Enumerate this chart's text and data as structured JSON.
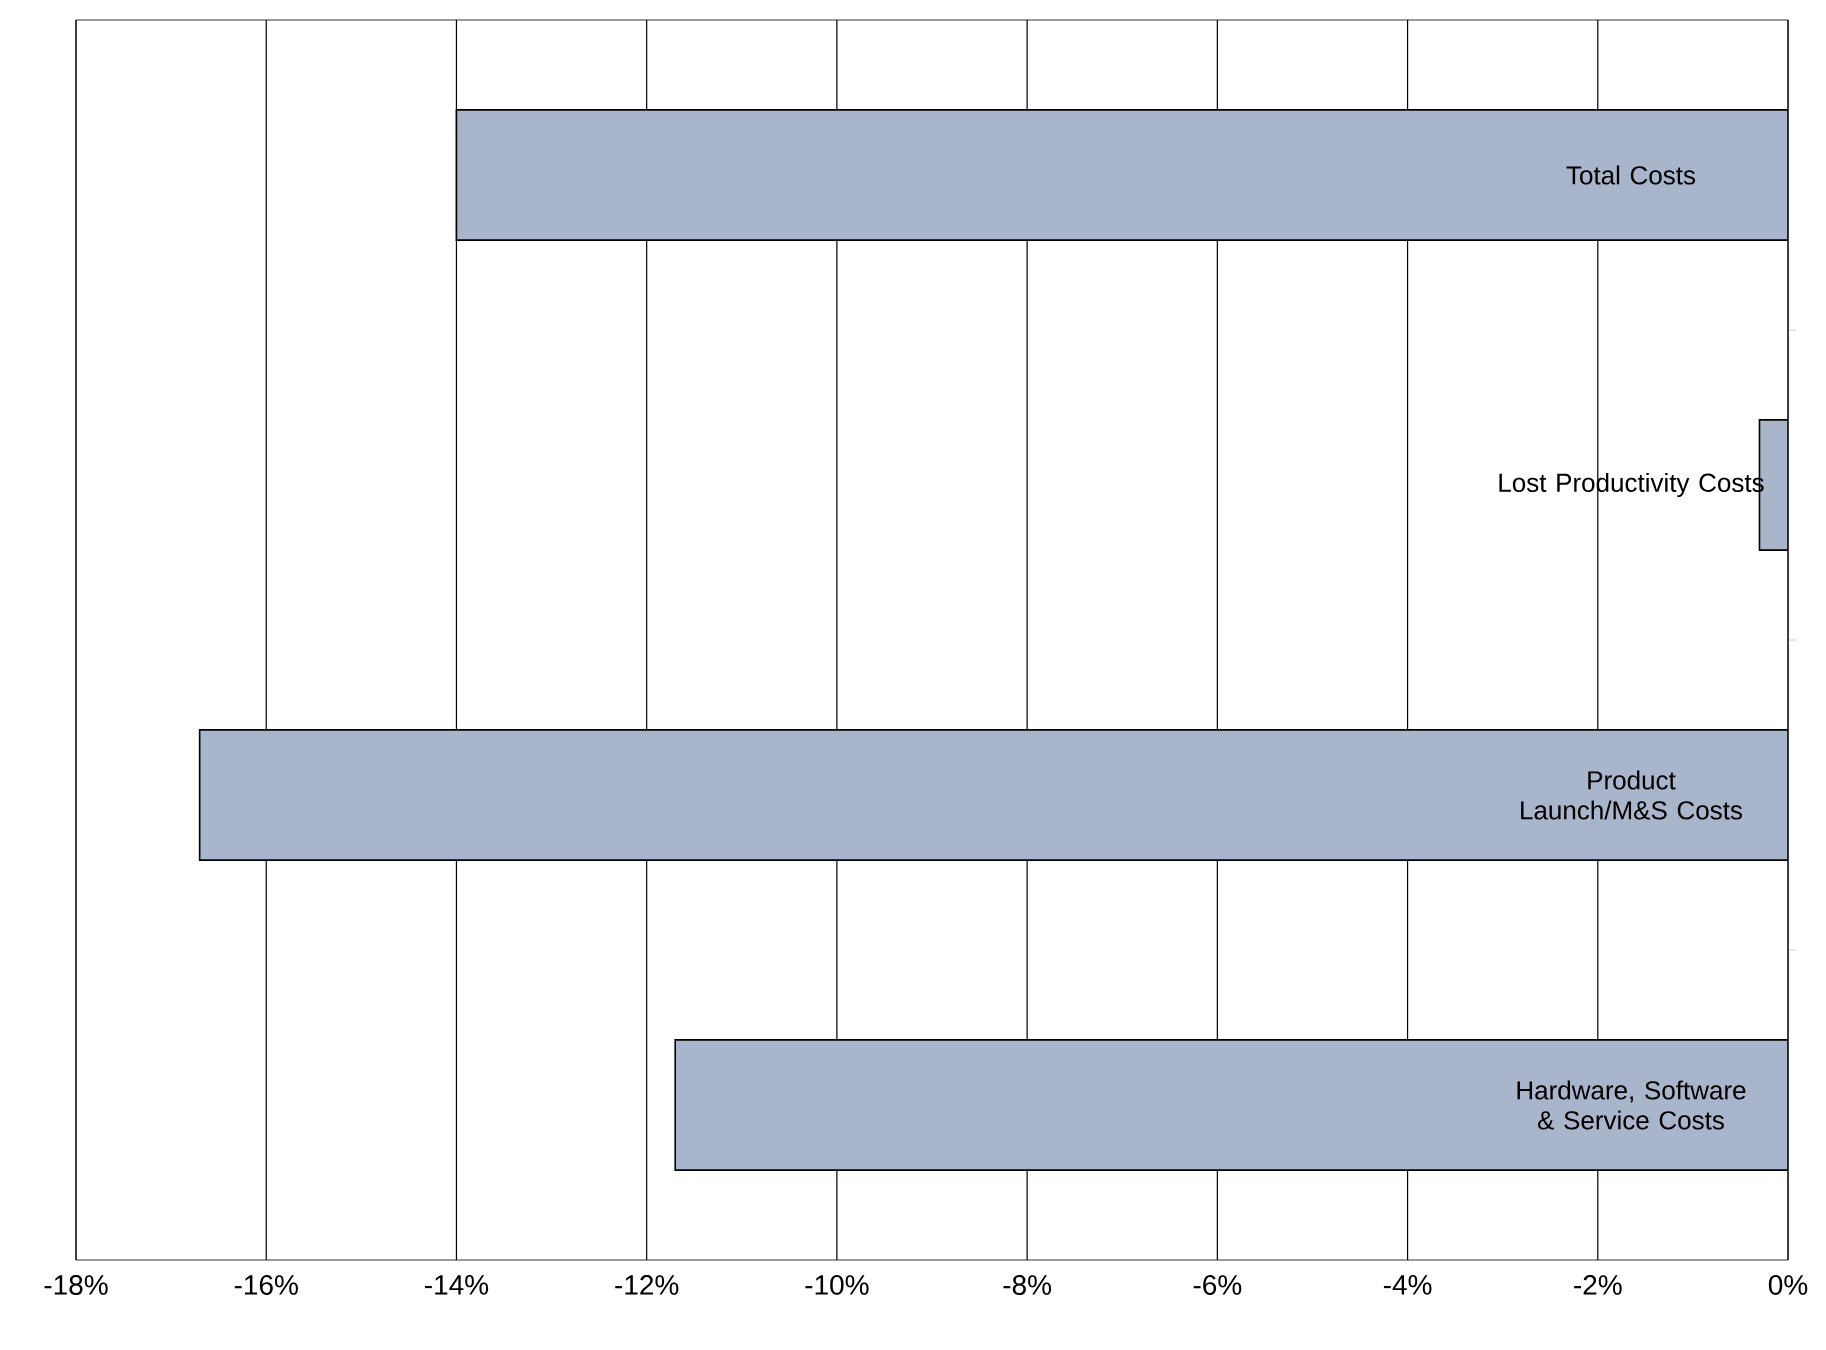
{
  "chart_data": {
    "type": "bar",
    "orientation": "horizontal",
    "categories": [
      "Total Costs",
      "Lost Productivity Costs",
      "Product Launch/M&S Costs",
      "Hardware, Software & Service Costs"
    ],
    "values": [
      -14.0,
      -0.3,
      -16.7,
      -11.7
    ],
    "color": "#a9b5cb",
    "xlim": [
      -18,
      0
    ],
    "xticks": [
      {
        "value": -18,
        "label": "-18%"
      },
      {
        "value": -16,
        "label": "-16%"
      },
      {
        "value": -14,
        "label": "-14%"
      },
      {
        "value": -12,
        "label": "-12%"
      },
      {
        "value": -10,
        "label": "-10%"
      },
      {
        "value": -8,
        "label": "-8%"
      },
      {
        "value": -6,
        "label": "-6%"
      },
      {
        "value": -4,
        "label": "-4%"
      },
      {
        "value": -2,
        "label": "-2%"
      },
      {
        "value": 0,
        "label": "0%"
      }
    ],
    "grid": "x"
  }
}
